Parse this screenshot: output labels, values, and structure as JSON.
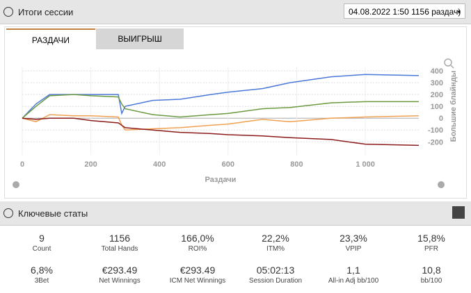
{
  "header": {
    "title": "Итоги сессии",
    "session": "04.08.2022 1:50 1156 раздач)"
  },
  "tabs": [
    "РАЗДАЧИ",
    "ВЫИГРЫШ"
  ],
  "chart_data": {
    "type": "line",
    "xlabel": "Раздачи",
    "ylabel": "Большие блайнды",
    "x": [
      0,
      40,
      80,
      150,
      200,
      280,
      290,
      300,
      380,
      460,
      550,
      600,
      700,
      780,
      900,
      1000,
      1156
    ],
    "series": [
      {
        "name": "blue",
        "color": "#4a78d8",
        "values": [
          0,
          120,
          200,
          200,
          200,
          200,
          40,
          100,
          150,
          160,
          200,
          220,
          250,
          300,
          350,
          370,
          360
        ]
      },
      {
        "name": "green",
        "color": "#6a9a40",
        "values": [
          0,
          100,
          190,
          200,
          190,
          180,
          120,
          80,
          30,
          10,
          30,
          40,
          80,
          90,
          130,
          140,
          140
        ]
      },
      {
        "name": "orange",
        "color": "#f0a050",
        "values": [
          0,
          -30,
          30,
          20,
          20,
          10,
          -60,
          -100,
          -90,
          -80,
          -60,
          -50,
          -10,
          -30,
          0,
          10,
          20
        ]
      },
      {
        "name": "red",
        "color": "#8b1a1a",
        "values": [
          0,
          -10,
          0,
          0,
          -20,
          -40,
          -60,
          -80,
          -100,
          -120,
          -130,
          -140,
          -150,
          -165,
          -180,
          -220,
          -230
        ]
      }
    ],
    "xlim": [
      0,
      1156
    ],
    "ylim": [
      -310,
      430
    ],
    "xticks": [
      0,
      200,
      400,
      600,
      800,
      {
        "value": 1000,
        "label": "1 000"
      }
    ],
    "yticks": [
      400,
      300,
      200,
      100,
      0,
      -100,
      -200
    ],
    "grid": true
  },
  "stats_title": "Ключевые статы",
  "stats": [
    {
      "value": "9",
      "label": "Count"
    },
    {
      "value": "1156",
      "label": "Total Hands"
    },
    {
      "value": "166,0%",
      "label": "ROI%"
    },
    {
      "value": "22,2%",
      "label": "ITM%"
    },
    {
      "value": "23,3%",
      "label": "VPIP"
    },
    {
      "value": "15,8%",
      "label": "PFR"
    },
    {
      "value": "6,8%",
      "label": "3Bet"
    },
    {
      "value": "€293.49",
      "label": "Net Winnings"
    },
    {
      "value": "€293.49",
      "label": "ICM Net Winnings"
    },
    {
      "value": "05:02:13",
      "label": "Session Duration"
    },
    {
      "value": "1,1",
      "label": "All-in Adj bb/100"
    },
    {
      "value": "10,8",
      "label": "bb/100"
    }
  ]
}
